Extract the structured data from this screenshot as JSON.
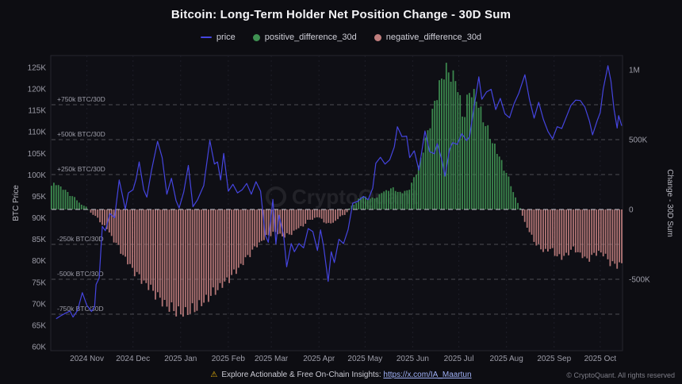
{
  "header": {
    "title": "Bitcoin: Long-Term Holder Net Position Change - 30D Sum"
  },
  "legend": [
    {
      "label": "price",
      "color": "#4545e0",
      "marker": "line"
    },
    {
      "label": "positive_difference_30d",
      "color": "#3f9152",
      "marker": "dot"
    },
    {
      "label": "negative_difference_30d",
      "color": "#c07e7e",
      "marker": "dot"
    }
  ],
  "watermark": "CryptoQuant",
  "axes": {
    "left_label": "BTC Price",
    "right_label": "Change - 30D Sum",
    "left_ticks": [
      {
        "label": "125K",
        "value": 125
      },
      {
        "label": "120K",
        "value": 120
      },
      {
        "label": "115K",
        "value": 115
      },
      {
        "label": "110K",
        "value": 110
      },
      {
        "label": "105K",
        "value": 105
      },
      {
        "label": "100K",
        "value": 100
      },
      {
        "label": "95K",
        "value": 95
      },
      {
        "label": "90K",
        "value": 90
      },
      {
        "label": "85K",
        "value": 85
      },
      {
        "label": "80K",
        "value": 80
      },
      {
        "label": "75K",
        "value": 75
      },
      {
        "label": "70K",
        "value": 70
      },
      {
        "label": "65K",
        "value": 65
      },
      {
        "label": "60K",
        "value": 60
      }
    ],
    "right_ticks": [
      {
        "label": "1M",
        "value": 1000
      },
      {
        "label": "500K",
        "value": 500
      },
      {
        "label": "0",
        "value": 0
      },
      {
        "label": "-500K",
        "value": -500
      }
    ]
  },
  "guides": [
    {
      "label": "+750k BTC/30D",
      "value": 750
    },
    {
      "label": "+500k BTC/30D",
      "value": 500
    },
    {
      "label": "+250k BTC/30D",
      "value": 250
    },
    {
      "label": "-250k BTC/30D",
      "value": -250
    },
    {
      "label": "-500k BTC/30D",
      "value": -500
    },
    {
      "label": "-750k BTC/30D",
      "value": -750
    }
  ],
  "footer": {
    "notice_icon": "⚠",
    "notice_text": "Explore Actionable & Free On-Chain Insights: ",
    "link": "https://x.com/IA_Maartun",
    "copyright": "© CryptoQuant. All rights reserved"
  },
  "chart_data": {
    "type": "mixed",
    "title": "Bitcoin: Long-Term Holder Net Position Change - 30D Sum",
    "x_unit": "days since 2024-10-09",
    "x_range": [
      0,
      371
    ],
    "price_axis": {
      "label": "BTC Price",
      "unit": "USD thousands",
      "ylim_k": [
        60,
        127
      ]
    },
    "net_axis": {
      "label": "Change - 30D Sum",
      "unit": "BTC thousands per 30D",
      "ylim_k": [
        -820,
        1250
      ]
    },
    "grid": "dashed horizontal guides every 250k, faint monthly verticals",
    "legend_position": "top-center",
    "colors": {
      "price": "#4545e0",
      "positive": "#3f9152",
      "negative": "#c07e7e"
    },
    "month_ticks": [
      {
        "label": "2024 Nov",
        "day": 23
      },
      {
        "label": "2024 Dec",
        "day": 53
      },
      {
        "label": "2025 Jan",
        "day": 84
      },
      {
        "label": "2025 Feb",
        "day": 115
      },
      {
        "label": "2025 Mar",
        "day": 143
      },
      {
        "label": "2025 Apr",
        "day": 174
      },
      {
        "label": "2025 May",
        "day": 204
      },
      {
        "label": "2025 Jun",
        "day": 235
      },
      {
        "label": "2025 Jul",
        "day": 265
      },
      {
        "label": "2025 Aug",
        "day": 296
      },
      {
        "label": "2025 Sep",
        "day": 327
      },
      {
        "label": "2025 Oct",
        "day": 357
      }
    ],
    "price_points": [
      [
        3,
        66.5
      ],
      [
        6,
        67.2
      ],
      [
        9,
        67.8
      ],
      [
        12,
        68.3
      ],
      [
        14,
        66.9
      ],
      [
        17,
        68.5
      ],
      [
        20,
        72.6
      ],
      [
        23,
        69.6
      ],
      [
        26,
        68.2
      ],
      [
        28,
        69.3
      ],
      [
        29,
        74.5
      ],
      [
        31,
        76.0
      ],
      [
        33,
        88.0
      ],
      [
        35,
        87.0
      ],
      [
        38,
        91.0
      ],
      [
        41,
        90.0
      ],
      [
        44,
        98.8
      ],
      [
        46,
        95.5
      ],
      [
        48,
        92.0
      ],
      [
        50,
        95.8
      ],
      [
        53,
        96.5
      ],
      [
        55,
        99.0
      ],
      [
        57,
        103.0
      ],
      [
        60,
        96.5
      ],
      [
        62,
        94.8
      ],
      [
        65,
        101.0
      ],
      [
        69,
        107.8
      ],
      [
        72,
        104.0
      ],
      [
        75,
        95.5
      ],
      [
        78,
        99.2
      ],
      [
        81,
        94.0
      ],
      [
        83,
        92.3
      ],
      [
        86,
        96.0
      ],
      [
        89,
        102.2
      ],
      [
        92,
        92.6
      ],
      [
        95,
        94.2
      ],
      [
        99,
        97.5
      ],
      [
        103,
        108.0
      ],
      [
        106,
        102.5
      ],
      [
        108,
        103.0
      ],
      [
        110,
        98.8
      ],
      [
        112,
        105.0
      ],
      [
        115,
        96.2
      ],
      [
        118,
        97.8
      ],
      [
        121,
        95.8
      ],
      [
        124,
        96.5
      ],
      [
        127,
        98.0
      ],
      [
        130,
        95.5
      ],
      [
        133,
        98.4
      ],
      [
        136,
        96.2
      ],
      [
        139,
        86.0
      ],
      [
        141,
        84.3
      ],
      [
        144,
        94.3
      ],
      [
        146,
        83.9
      ],
      [
        148,
        90.6
      ],
      [
        151,
        86.0
      ],
      [
        153,
        78.6
      ],
      [
        156,
        84.0
      ],
      [
        158,
        82.1
      ],
      [
        161,
        84.0
      ],
      [
        164,
        83.0
      ],
      [
        167,
        87.5
      ],
      [
        170,
        86.8
      ],
      [
        173,
        82.4
      ],
      [
        175,
        87.2
      ],
      [
        177,
        83.4
      ],
      [
        180,
        75.2
      ],
      [
        182,
        82.1
      ],
      [
        184,
        79.6
      ],
      [
        187,
        85.0
      ],
      [
        190,
        84.0
      ],
      [
        193,
        87.3
      ],
      [
        196,
        93.4
      ],
      [
        199,
        93.8
      ],
      [
        203,
        95.0
      ],
      [
        206,
        94.2
      ],
      [
        209,
        96.9
      ],
      [
        211,
        102.7
      ],
      [
        214,
        104.1
      ],
      [
        217,
        102.5
      ],
      [
        220,
        103.5
      ],
      [
        223,
        106.5
      ],
      [
        225,
        111.2
      ],
      [
        228,
        108.9
      ],
      [
        231,
        109.0
      ],
      [
        233,
        104.0
      ],
      [
        236,
        105.6
      ],
      [
        239,
        101.1
      ],
      [
        243,
        110.2
      ],
      [
        246,
        105.4
      ],
      [
        249,
        104.9
      ],
      [
        251,
        107.3
      ],
      [
        254,
        103.4
      ],
      [
        256,
        99.7
      ],
      [
        259,
        105.9
      ],
      [
        261,
        107.5
      ],
      [
        264,
        107.1
      ],
      [
        267,
        109.6
      ],
      [
        270,
        108.0
      ],
      [
        272,
        108.9
      ],
      [
        275,
        116.0
      ],
      [
        278,
        122.8
      ],
      [
        280,
        117.6
      ],
      [
        283,
        119.3
      ],
      [
        286,
        119.9
      ],
      [
        289,
        115.2
      ],
      [
        292,
        117.8
      ],
      [
        295,
        114.2
      ],
      [
        298,
        113.3
      ],
      [
        301,
        116.6
      ],
      [
        304,
        119.0
      ],
      [
        308,
        123.3
      ],
      [
        311,
        117.5
      ],
      [
        314,
        113.2
      ],
      [
        317,
        116.9
      ],
      [
        320,
        112.9
      ],
      [
        323,
        110.1
      ],
      [
        326,
        108.4
      ],
      [
        329,
        111.2
      ],
      [
        332,
        110.8
      ],
      [
        335,
        113.5
      ],
      [
        338,
        116.2
      ],
      [
        341,
        117.4
      ],
      [
        344,
        117.3
      ],
      [
        347,
        115.8
      ],
      [
        350,
        112.5
      ],
      [
        352,
        109.3
      ],
      [
        355,
        112.6
      ],
      [
        357,
        114.5
      ],
      [
        359,
        120.0
      ],
      [
        362,
        125.4
      ],
      [
        364,
        121.8
      ],
      [
        366,
        115.2
      ],
      [
        368,
        110.9
      ],
      [
        369,
        113.8
      ],
      [
        371,
        111.4
      ]
    ],
    "net_points": [
      [
        0,
        170
      ],
      [
        4,
        185
      ],
      [
        8,
        140
      ],
      [
        12,
        110
      ],
      [
        16,
        70
      ],
      [
        20,
        35
      ],
      [
        24,
        0
      ],
      [
        28,
        -45
      ],
      [
        32,
        -90
      ],
      [
        36,
        -140
      ],
      [
        40,
        -210
      ],
      [
        44,
        -280
      ],
      [
        48,
        -350
      ],
      [
        52,
        -420
      ],
      [
        56,
        -470
      ],
      [
        60,
        -520
      ],
      [
        64,
        -560
      ],
      [
        68,
        -610
      ],
      [
        72,
        -660
      ],
      [
        76,
        -700
      ],
      [
        80,
        -720
      ],
      [
        84,
        -745
      ],
      [
        88,
        -735
      ],
      [
        92,
        -720
      ],
      [
        96,
        -690
      ],
      [
        100,
        -650
      ],
      [
        104,
        -610
      ],
      [
        108,
        -570
      ],
      [
        112,
        -530
      ],
      [
        116,
        -490
      ],
      [
        120,
        -440
      ],
      [
        124,
        -390
      ],
      [
        128,
        -330
      ],
      [
        132,
        -280
      ],
      [
        136,
        -230
      ],
      [
        140,
        -195
      ],
      [
        144,
        -165
      ],
      [
        148,
        -175
      ],
      [
        152,
        -195
      ],
      [
        156,
        -170
      ],
      [
        160,
        -140
      ],
      [
        164,
        -110
      ],
      [
        168,
        -75
      ],
      [
        172,
        -55
      ],
      [
        176,
        -70
      ],
      [
        180,
        -110
      ],
      [
        184,
        -85
      ],
      [
        188,
        -55
      ],
      [
        192,
        -20
      ],
      [
        196,
        30
      ],
      [
        200,
        75
      ],
      [
        204,
        95
      ],
      [
        208,
        70
      ],
      [
        212,
        95
      ],
      [
        216,
        125
      ],
      [
        220,
        150
      ],
      [
        224,
        140
      ],
      [
        228,
        115
      ],
      [
        232,
        140
      ],
      [
        236,
        220
      ],
      [
        240,
        350
      ],
      [
        244,
        520
      ],
      [
        248,
        700
      ],
      [
        252,
        880
      ],
      [
        256,
        1000
      ],
      [
        260,
        970
      ],
      [
        264,
        900
      ],
      [
        268,
        640
      ],
      [
        272,
        860
      ],
      [
        276,
        800
      ],
      [
        280,
        680
      ],
      [
        284,
        560
      ],
      [
        288,
        460
      ],
      [
        292,
        360
      ],
      [
        296,
        260
      ],
      [
        300,
        140
      ],
      [
        304,
        30
      ],
      [
        308,
        -90
      ],
      [
        312,
        -190
      ],
      [
        316,
        -255
      ],
      [
        320,
        -300
      ],
      [
        324,
        -280
      ],
      [
        328,
        -320
      ],
      [
        332,
        -350
      ],
      [
        336,
        -310
      ],
      [
        340,
        -280
      ],
      [
        344,
        -320
      ],
      [
        348,
        -360
      ],
      [
        352,
        -335
      ],
      [
        356,
        -300
      ],
      [
        360,
        -330
      ],
      [
        364,
        -385
      ],
      [
        368,
        -405
      ],
      [
        371,
        -380
      ]
    ],
    "bar_samples": 248
  }
}
